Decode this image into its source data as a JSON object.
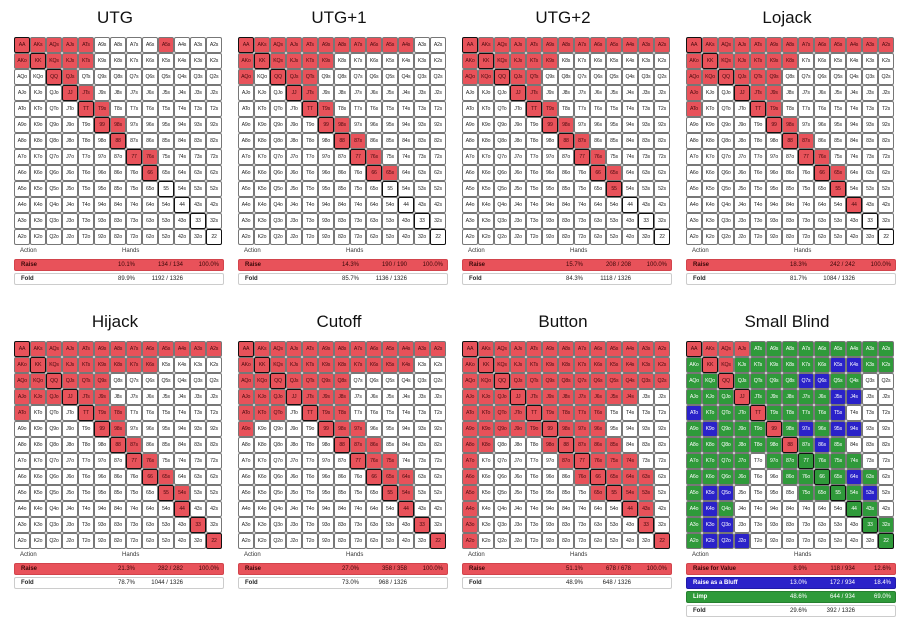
{
  "header_labels": {
    "action": "Action",
    "hands": "Hands"
  },
  "ranks": [
    "A",
    "K",
    "Q",
    "J",
    "T",
    "9",
    "8",
    "7",
    "6",
    "5",
    "4",
    "3",
    "2"
  ],
  "colors": {
    "raise": "#e8525a",
    "bluff": "#2a22c9",
    "limp": "#2f9a3a",
    "fold": "#ffffff"
  },
  "panels": [
    {
      "title": "UTG",
      "raise_cells": [
        "AA",
        "AKs",
        "AQs",
        "AJs",
        "ATs",
        "A5s",
        "AKo",
        "KK",
        "KQs",
        "KJs",
        "KTs",
        "QQ",
        "QJs",
        "JJ",
        "JTs",
        "TT",
        "T9s",
        "99",
        "98s",
        "88",
        "77",
        "76s",
        "66"
      ],
      "bluff_cells": [],
      "limp_cells": [],
      "actions": [
        {
          "kind": "raise",
          "name": "Raise",
          "pct": "10.1%",
          "hands": "134 / 134",
          "total": "100.0%"
        },
        {
          "kind": "fold",
          "name": "Fold",
          "pct": "89.9%",
          "hands": "1192 / 1326",
          "total": ""
        }
      ]
    },
    {
      "title": "UTG+1",
      "raise_cells": [
        "AA",
        "AKs",
        "AQs",
        "AJs",
        "ATs",
        "A9s",
        "A8s",
        "A7s",
        "A6s",
        "A5s",
        "A4s",
        "AKo",
        "KK",
        "KQs",
        "KJs",
        "KTs",
        "K9s",
        "AQo",
        "QQ",
        "QJs",
        "QTs",
        "JJ",
        "JTs",
        "TT",
        "T9s",
        "99",
        "98s",
        "88",
        "87s",
        "77",
        "76s",
        "66",
        "65s"
      ],
      "bluff_cells": [],
      "limp_cells": [],
      "actions": [
        {
          "kind": "raise",
          "name": "Raise",
          "pct": "14.3%",
          "hands": "190 / 190",
          "total": "100.0%"
        },
        {
          "kind": "fold",
          "name": "Fold",
          "pct": "85.7%",
          "hands": "1136 / 1326",
          "total": ""
        }
      ]
    },
    {
      "title": "UTG+2",
      "raise_cells": [
        "AA",
        "AKs",
        "AQs",
        "AJs",
        "ATs",
        "A9s",
        "A8s",
        "A7s",
        "A6s",
        "A5s",
        "A4s",
        "A3s",
        "A2s",
        "AKo",
        "KK",
        "KQs",
        "KJs",
        "KTs",
        "K9s",
        "AQo",
        "KQo",
        "QQ",
        "QJs",
        "QTs",
        "JJ",
        "JTs",
        "TT",
        "T9s",
        "99",
        "98s",
        "88",
        "87s",
        "77",
        "76s",
        "66",
        "65s",
        "55"
      ],
      "bluff_cells": [],
      "limp_cells": [],
      "actions": [
        {
          "kind": "raise",
          "name": "Raise",
          "pct": "15.7%",
          "hands": "208 / 208",
          "total": "100.0%"
        },
        {
          "kind": "fold",
          "name": "Fold",
          "pct": "84.3%",
          "hands": "1118 / 1326",
          "total": ""
        }
      ]
    },
    {
      "title": "Lojack",
      "raise_cells": [
        "AA",
        "AKs",
        "AQs",
        "AJs",
        "ATs",
        "A9s",
        "A8s",
        "A7s",
        "A6s",
        "A5s",
        "A4s",
        "A3s",
        "A2s",
        "AKo",
        "KK",
        "KQs",
        "KJs",
        "KTs",
        "K9s",
        "K8s",
        "AQo",
        "KQo",
        "QQ",
        "QJs",
        "QTs",
        "Q9s",
        "AJo",
        "JJ",
        "JTs",
        "J9s",
        "ATo",
        "TT",
        "T9s",
        "99",
        "98s",
        "88",
        "87s",
        "77",
        "76s",
        "66",
        "65s",
        "55",
        "44"
      ],
      "bluff_cells": [],
      "limp_cells": [],
      "actions": [
        {
          "kind": "raise",
          "name": "Raise",
          "pct": "18.3%",
          "hands": "242 / 242",
          "total": "100.0%"
        },
        {
          "kind": "fold",
          "name": "Fold",
          "pct": "81.7%",
          "hands": "1084 / 1326",
          "total": ""
        }
      ]
    },
    {
      "title": "Hijack",
      "raise_cells": [
        "AA",
        "AKs",
        "AQs",
        "AJs",
        "ATs",
        "A9s",
        "A8s",
        "A7s",
        "A6s",
        "A5s",
        "A4s",
        "A3s",
        "A2s",
        "AKo",
        "KK",
        "KQs",
        "KJs",
        "KTs",
        "K9s",
        "K8s",
        "K7s",
        "K6s",
        "AQo",
        "KQo",
        "QQ",
        "QJs",
        "QTs",
        "Q9s",
        "AJo",
        "KJo",
        "QJo",
        "JJ",
        "JTs",
        "J9s",
        "ATo",
        "TT",
        "T9s",
        "T8s",
        "99",
        "98s",
        "88",
        "87s",
        "77",
        "76s",
        "66",
        "65s",
        "55",
        "54s",
        "44",
        "33",
        "22"
      ],
      "bluff_cells": [],
      "limp_cells": [],
      "actions": [
        {
          "kind": "raise",
          "name": "Raise",
          "pct": "21.3%",
          "hands": "282 / 282",
          "total": "100.0%"
        },
        {
          "kind": "fold",
          "name": "Fold",
          "pct": "78.7%",
          "hands": "1044 / 1326",
          "total": ""
        }
      ]
    },
    {
      "title": "Cutoff",
      "raise_cells": [
        "AA",
        "AKs",
        "AQs",
        "AJs",
        "ATs",
        "A9s",
        "A8s",
        "A7s",
        "A6s",
        "A5s",
        "A4s",
        "A3s",
        "A2s",
        "AKo",
        "KK",
        "KQs",
        "KJs",
        "KTs",
        "K9s",
        "K8s",
        "K7s",
        "K6s",
        "K5s",
        "K4s",
        "AQo",
        "KQo",
        "QQ",
        "QJs",
        "QTs",
        "Q9s",
        "Q8s",
        "AJo",
        "KJo",
        "QJo",
        "JJ",
        "JTs",
        "J9s",
        "J8s",
        "ATo",
        "KTo",
        "QTo",
        "TT",
        "T9s",
        "T8s",
        "A9o",
        "99",
        "98s",
        "97s",
        "88",
        "87s",
        "86s",
        "77",
        "76s",
        "75s",
        "66",
        "65s",
        "64s",
        "55",
        "54s",
        "44",
        "33",
        "22"
      ],
      "bluff_cells": [],
      "limp_cells": [],
      "actions": [
        {
          "kind": "raise",
          "name": "Raise",
          "pct": "27.0%",
          "hands": "358 / 358",
          "total": "100.0%"
        },
        {
          "kind": "fold",
          "name": "Fold",
          "pct": "73.0%",
          "hands": "968 / 1326",
          "total": ""
        }
      ]
    },
    {
      "title": "Button",
      "raise_cells": [
        "AA",
        "AKs",
        "AQs",
        "AJs",
        "ATs",
        "A9s",
        "A8s",
        "A7s",
        "A6s",
        "A5s",
        "A4s",
        "A3s",
        "A2s",
        "AKo",
        "KK",
        "KQs",
        "KJs",
        "KTs",
        "K9s",
        "K8s",
        "K7s",
        "K6s",
        "K5s",
        "K4s",
        "K3s",
        "K2s",
        "AQo",
        "KQo",
        "QQ",
        "QJs",
        "QTs",
        "Q9s",
        "Q8s",
        "Q7s",
        "Q6s",
        "Q5s",
        "Q4s",
        "Q3s",
        "Q2s",
        "AJo",
        "KJo",
        "QJo",
        "JJ",
        "JTs",
        "J9s",
        "J8s",
        "J7s",
        "J6s",
        "J5s",
        "J4s",
        "ATo",
        "KTo",
        "QTo",
        "JTo",
        "TT",
        "T9s",
        "T8s",
        "T7s",
        "T6s",
        "A9o",
        "K9o",
        "Q9o",
        "J9o",
        "T9o",
        "99",
        "98s",
        "97s",
        "96s",
        "A8o",
        "K8o",
        "98o",
        "88",
        "87s",
        "86s",
        "85s",
        "A7o",
        "87o",
        "77",
        "76s",
        "75s",
        "74s",
        "A6o",
        "76o",
        "66",
        "65s",
        "64s",
        "63s",
        "A5o",
        "65o",
        "55",
        "54s",
        "53s",
        "A4o",
        "44",
        "43s",
        "A3o",
        "33",
        "A2o",
        "22"
      ],
      "bluff_cells": [],
      "limp_cells": [],
      "actions": [
        {
          "kind": "raise",
          "name": "Raise",
          "pct": "51.1%",
          "hands": "678 / 678",
          "total": "100.0%"
        },
        {
          "kind": "fold",
          "name": "Fold",
          "pct": "48.9%",
          "hands": "648 / 1326",
          "total": ""
        }
      ]
    },
    {
      "title": "Small Blind",
      "raise_cells": [
        "AA",
        "AKs",
        "AQs",
        "AJs",
        "KK",
        "KQs",
        "QQ",
        "JJ",
        "TT",
        "99",
        "88"
      ],
      "bluff_cells": [
        "K5s",
        "K4s",
        "Q7s",
        "Q6s",
        "J5s",
        "J4s",
        "ATo",
        "T5s",
        "K9o",
        "97s",
        "95s",
        "94s",
        "86s",
        "64s",
        "53s",
        "K5o",
        "Q5o",
        "K4o",
        "K3o",
        "Q3o",
        "K2o",
        "Q2o",
        "J2o"
      ],
      "limp_cells": [
        "ATs",
        "A9s",
        "A8s",
        "A7s",
        "A6s",
        "A5s",
        "A4s",
        "A3s",
        "A2s",
        "AKo",
        "KJs",
        "KTs",
        "K9s",
        "K8s",
        "K7s",
        "K6s",
        "K3s",
        "K2s",
        "AQo",
        "KQo",
        "QJs",
        "QTs",
        "Q9s",
        "Q8s",
        "Q5s",
        "Q4s",
        "AJo",
        "KJo",
        "QJo",
        "JTs",
        "J9s",
        "J8s",
        "J7s",
        "J6s",
        "KTo",
        "QTo",
        "JTo",
        "T9s",
        "T8s",
        "T7s",
        "T6s",
        "A9o",
        "Q9o",
        "J9o",
        "T9o",
        "98s",
        "96s",
        "A8o",
        "K8o",
        "Q8o",
        "J8o",
        "T8o",
        "98o",
        "87s",
        "85s",
        "A7o",
        "K7o",
        "Q7o",
        "J7o",
        "97o",
        "87o",
        "77",
        "76s",
        "75s",
        "74s",
        "A6o",
        "K6o",
        "Q6o",
        "J6o",
        "86o",
        "76o",
        "66",
        "65s",
        "63s",
        "A5o",
        "75o",
        "65o",
        "55",
        "54s",
        "A4o",
        "Q4o",
        "44",
        "43s",
        "A3o",
        "33",
        "32s",
        "A2o",
        "22"
      ],
      "actions": [
        {
          "kind": "raise",
          "name": "Raise for Value",
          "pct": "8.9%",
          "hands": "118 / 934",
          "total": "12.6%"
        },
        {
          "kind": "bluff",
          "name": "Raise as a Bluff",
          "pct": "13.0%",
          "hands": "172 / 934",
          "total": "18.4%"
        },
        {
          "kind": "limp",
          "name": "Limp",
          "pct": "48.6%",
          "hands": "644 / 934",
          "total": "69.0%"
        },
        {
          "kind": "fold",
          "name": "Fold",
          "pct": "29.6%",
          "hands": "392 / 1326",
          "total": ""
        }
      ]
    }
  ]
}
